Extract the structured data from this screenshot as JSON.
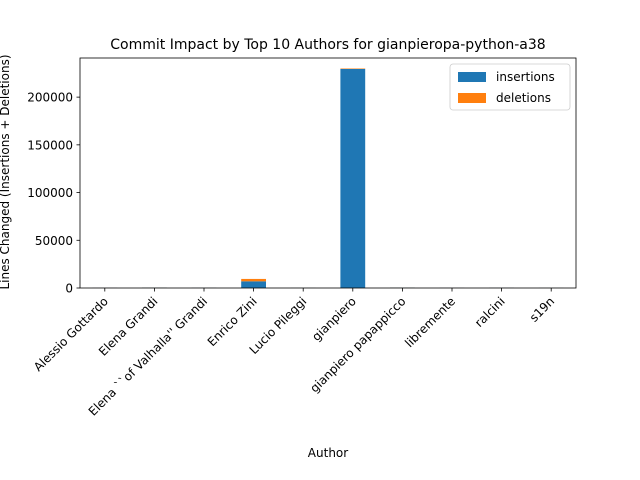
{
  "chart_data": {
    "type": "bar",
    "stacked": true,
    "title": "Commit Impact by Top 10 Authors for gianpieropa-python-a38",
    "xlabel": "Author",
    "ylabel": "Lines Changed (Insertions + Deletions)",
    "categories": [
      "Alessio Gottardo",
      "Elena Grandi",
      "Elena ``of Valhalla'' Grandi",
      "Enrico Zini",
      "Lucio Pileggi",
      "gianpiero",
      "gianpiero papappicco",
      "libremente",
      "ralcini",
      "s19n"
    ],
    "series": [
      {
        "name": "insertions",
        "color": "#1f77b4",
        "values": [
          150,
          300,
          200,
          7000,
          100,
          229500,
          300,
          150,
          200,
          100
        ]
      },
      {
        "name": "deletions",
        "color": "#ff7f0e",
        "values": [
          50,
          100,
          50,
          2500,
          50,
          500,
          100,
          50,
          50,
          50
        ]
      }
    ],
    "ylim": [
      0,
      241000
    ],
    "yticks": [
      0,
      50000,
      100000,
      150000,
      200000
    ],
    "grid": false,
    "legend_position": "top-right"
  }
}
